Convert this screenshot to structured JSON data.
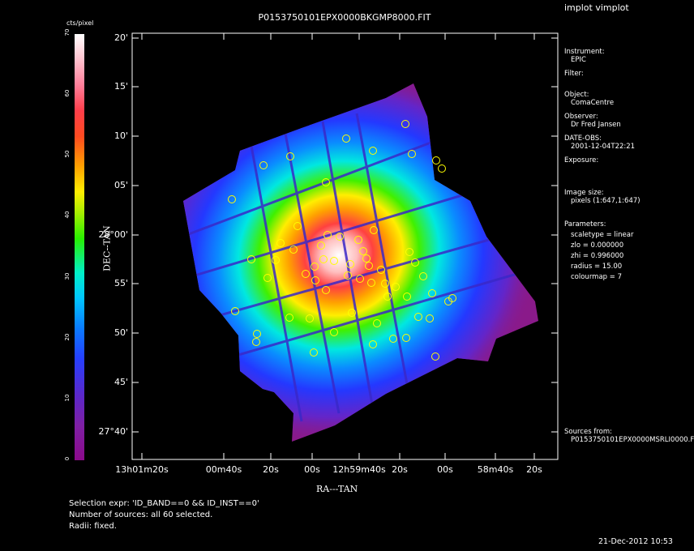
{
  "title": "P0153750101EPX0000BKGMP8000.FIT",
  "app_label": "implot vimplot",
  "colorbar": {
    "unit_label": "cts/pixel",
    "ticks": [
      "0",
      "10",
      "20",
      "30",
      "40",
      "50",
      "60",
      "70"
    ],
    "range": [
      0,
      70
    ]
  },
  "axes": {
    "xlabel": "RA---TAN",
    "ylabel": "DEC--TAN",
    "y_ticks": [
      "20'",
      "15'",
      "10'",
      "05'",
      "28°00'",
      "55'",
      "50'",
      "45'",
      "27°40'"
    ],
    "x_ticks": [
      "13h01m20s",
      "00m40s",
      "20s",
      "00s",
      "12h59m40s",
      "20s",
      "00s",
      "58m40s",
      "20s"
    ]
  },
  "info_panel": {
    "instrument_label": "Instrument:",
    "instrument_value": "EPIC",
    "filter_label": "Filter:",
    "object_label": "Object:",
    "object_value": "ComaCentre",
    "observer_label": "Observer:",
    "observer_value": "Dr Fred Jansen",
    "date_label": "DATE-OBS:",
    "date_value": "2001-12-04T22:21",
    "exposure_label": "Exposure:",
    "image_size_label": "Image size:",
    "image_size_value": "pixels (1:647,1:647)",
    "parameters_label": "Parameters:",
    "param_scaletype": "scaletype = linear",
    "param_zlo": "zlo = 0.000000",
    "param_zhi": "zhi = 0.996000",
    "param_radius": "radius = 15.00",
    "param_colourmap": "colourmap = 7",
    "sources_label": "Sources from:",
    "sources_value": "P0153750101EPX0000MSRLI0000.F"
  },
  "footer": {
    "selection": "Selection expr: 'ID_BAND==0 && ID_INST==0'",
    "num_sources": "Number of sources: all 60 selected.",
    "radii": "Radii: fixed.",
    "timestamp": "21-Dec-2012 10:53"
  },
  "colors": {
    "background": "#000000",
    "source_marker": "#ffff00",
    "field_edge": "#8a1a8a"
  },
  "chart_data": {
    "type": "heatmap",
    "title": "P0153750101EPX0000BKGMP8000.FIT",
    "xlabel": "RA---TAN",
    "ylabel": "DEC--TAN",
    "colorbar_label": "cts/pixel",
    "colorbar_range": [
      0,
      70
    ],
    "colormap": "rainbow (purple-blue-cyan-green-yellow-red-white)",
    "sources_count": 60,
    "source_marker": "circle"
  }
}
